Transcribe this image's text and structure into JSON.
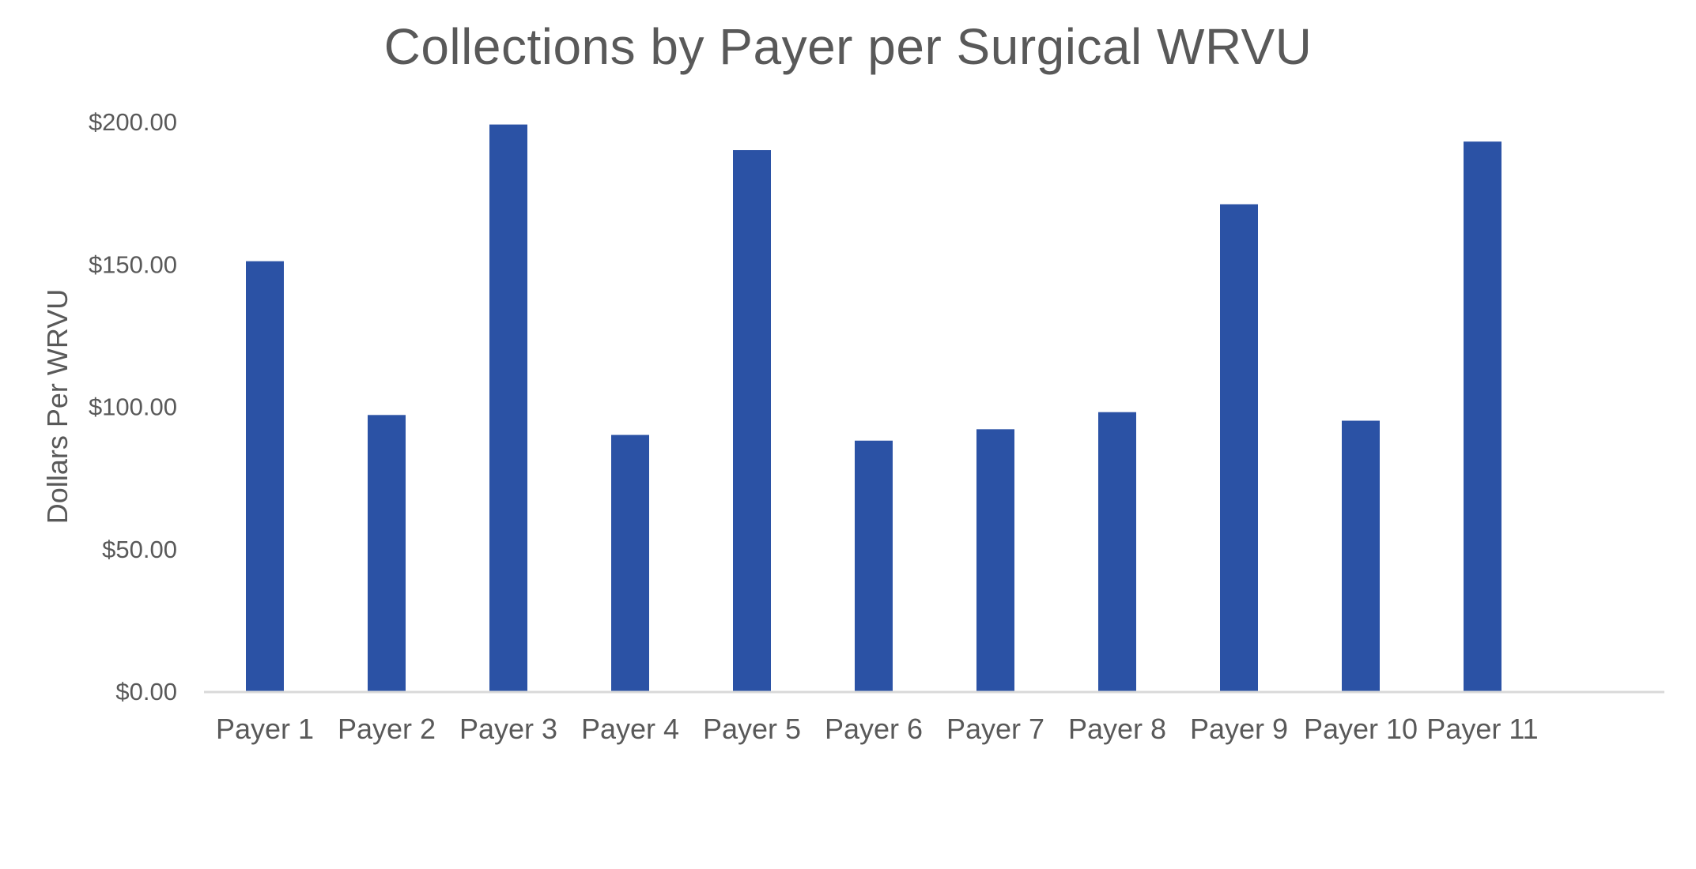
{
  "chart_data": {
    "type": "bar",
    "title": "Collections by Payer per Surgical WRVU",
    "xlabel": "",
    "ylabel": "Dollars Per WRVU",
    "categories": [
      "Payer 1",
      "Payer 2",
      "Payer 3",
      "Payer 4",
      "Payer 5",
      "Payer 6",
      "Payer 7",
      "Payer 8",
      "Payer 9",
      "Payer 10",
      "Payer 11"
    ],
    "series": [
      {
        "values": [
          151,
          97,
          199,
          90,
          190,
          88,
          92,
          98,
          171,
          95,
          193
        ]
      }
    ],
    "ylim": [
      0,
      200
    ],
    "yticks": [
      0,
      50,
      100,
      150,
      200
    ],
    "ytick_labels": [
      "$0.00",
      "$50.00",
      "$100.00",
      "$150.00",
      "$200.00"
    ],
    "grid": false,
    "legend": "none",
    "colors": {
      "bar": "#2B52A5",
      "axis_line": "#D9D9D9",
      "text": "#595959"
    }
  }
}
